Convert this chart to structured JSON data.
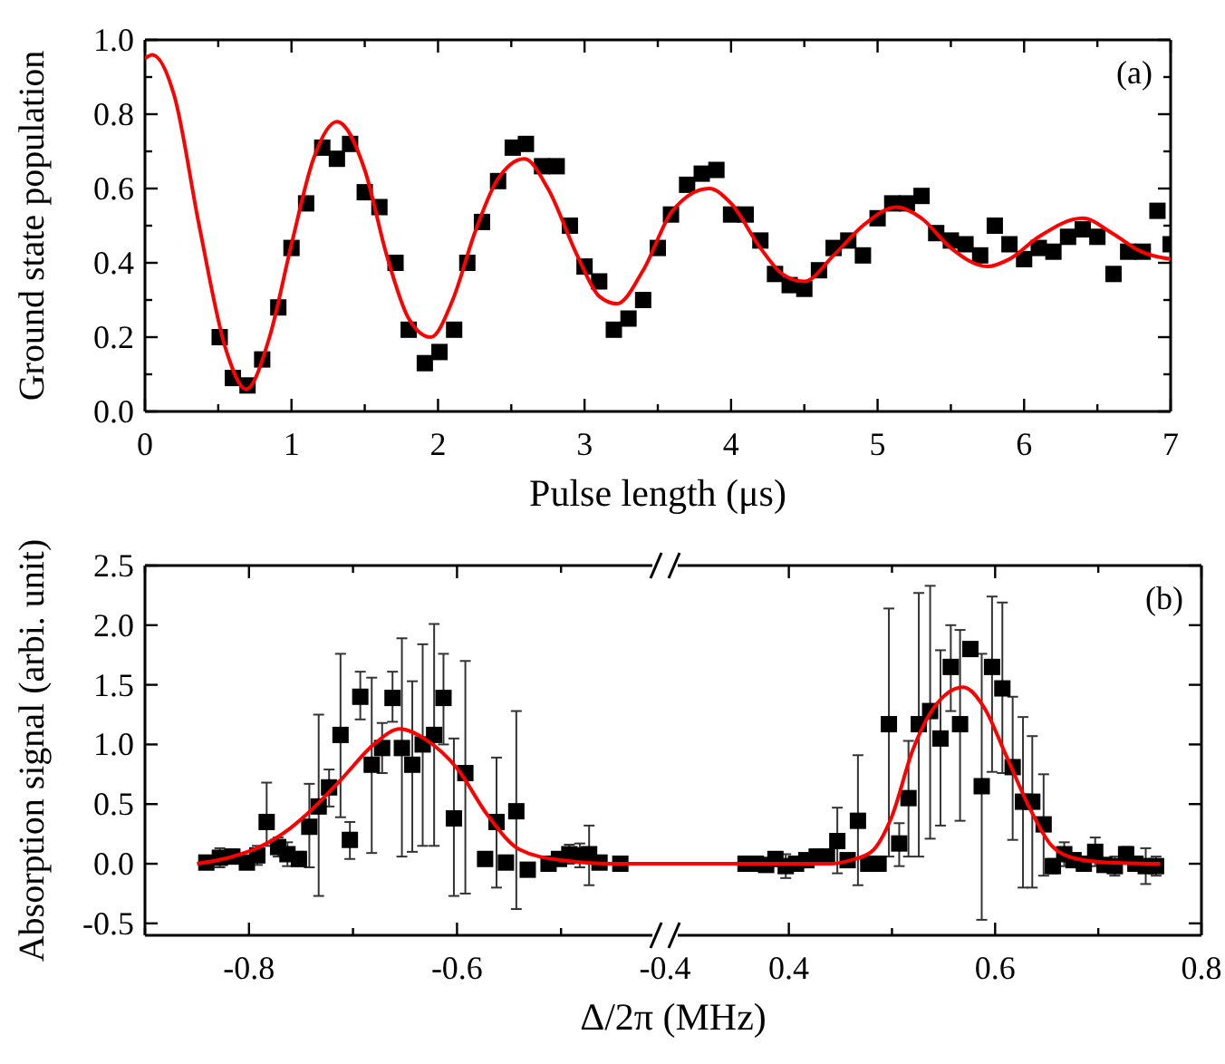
{
  "chart_data": [
    {
      "type": "scatter",
      "xlabel": "Pulse length (μs)",
      "ylabel": "Ground state population",
      "annotations": [
        "(a)"
      ],
      "xlim": [
        0,
        7
      ],
      "ylim": [
        0,
        1.0
      ],
      "xticks": [
        0,
        {
          "value": 0.5,
          "label": null
        },
        1,
        {
          "value": 1.5,
          "label": null
        },
        2,
        {
          "value": 2.5,
          "label": null
        },
        3,
        {
          "value": 3.5,
          "label": null
        },
        4,
        {
          "value": 4.5,
          "label": null
        },
        5,
        {
          "value": 5.5,
          "label": null
        },
        6,
        {
          "value": 6.5,
          "label": null
        },
        7
      ],
      "yticks": [
        {
          "value": 0,
          "label": "0.0"
        },
        {
          "value": 0.1,
          "label": null
        },
        0.2,
        {
          "value": 0.3,
          "label": null
        },
        0.4,
        {
          "value": 0.5,
          "label": null
        },
        0.6,
        {
          "value": 0.7,
          "label": null
        },
        0.8,
        {
          "value": 0.9,
          "label": null
        },
        {
          "value": 1.0,
          "label": "1.0"
        }
      ],
      "series": [
        {
          "marker": "square",
          "color": "#000000",
          "x": [
            0.51,
            0.6,
            0.7,
            0.8,
            0.91,
            1.0,
            1.1,
            1.21,
            1.31,
            1.4,
            1.5,
            1.6,
            1.71,
            1.8,
            1.91,
            2.01,
            2.11,
            2.2,
            2.3,
            2.41,
            2.51,
            2.6,
            2.71,
            2.81,
            2.9,
            3.0,
            3.1,
            3.2,
            3.3,
            3.4,
            3.5,
            3.59,
            3.7,
            3.8,
            3.9,
            4.0,
            4.1,
            4.2,
            4.3,
            4.4,
            4.5,
            4.6,
            4.7,
            4.8,
            4.9,
            5.0,
            5.1,
            5.2,
            5.3,
            5.4,
            5.5,
            5.6,
            5.7,
            5.8,
            5.9,
            6.0,
            6.1,
            6.2,
            6.3,
            6.4,
            6.5,
            6.61,
            6.71,
            6.81,
            6.91,
            7.0
          ],
          "values": [
            0.2,
            0.09,
            0.07,
            0.14,
            0.28,
            0.44,
            0.56,
            0.71,
            0.68,
            0.72,
            0.59,
            0.55,
            0.4,
            0.22,
            0.13,
            0.16,
            0.22,
            0.4,
            0.51,
            0.62,
            0.71,
            0.72,
            0.66,
            0.66,
            0.5,
            0.39,
            0.35,
            0.22,
            0.25,
            0.3,
            0.44,
            0.53,
            0.61,
            0.64,
            0.65,
            0.53,
            0.53,
            0.46,
            0.37,
            0.34,
            0.33,
            0.38,
            0.44,
            0.46,
            0.42,
            0.52,
            0.56,
            0.56,
            0.58,
            0.48,
            0.46,
            0.45,
            0.42,
            0.5,
            0.45,
            0.41,
            0.44,
            0.43,
            0.47,
            0.49,
            0.47,
            0.37,
            0.43,
            0.43,
            0.54,
            0.45
          ]
        },
        {
          "type": "line",
          "color": "#ff0000",
          "x": [
            0,
            0.05,
            0.2,
            0.37,
            0.55,
            0.69,
            0.85,
            1.0,
            1.15,
            1.31,
            1.5,
            1.65,
            1.8,
            1.95,
            2.1,
            2.25,
            2.4,
            2.59,
            2.75,
            2.95,
            3.1,
            3.22,
            3.4,
            3.6,
            3.85,
            4.0,
            4.2,
            4.35,
            4.5,
            4.7,
            4.9,
            5.13,
            5.3,
            5.5,
            5.75,
            5.9,
            6.1,
            6.4,
            6.6,
            6.8,
            7.0
          ],
          "values": [
            0.95,
            0.96,
            0.85,
            0.5,
            0.17,
            0.06,
            0.2,
            0.45,
            0.68,
            0.78,
            0.65,
            0.42,
            0.25,
            0.2,
            0.3,
            0.48,
            0.62,
            0.68,
            0.6,
            0.42,
            0.31,
            0.29,
            0.38,
            0.54,
            0.6,
            0.56,
            0.44,
            0.37,
            0.35,
            0.42,
            0.5,
            0.55,
            0.52,
            0.44,
            0.39,
            0.41,
            0.47,
            0.52,
            0.48,
            0.43,
            0.41
          ]
        }
      ]
    },
    {
      "type": "scatter",
      "xlabel": "Δ/2π (MHz)",
      "ylabel": "Absorption signal (arbi. unit)",
      "xlim": [
        -0.9,
        -0.4
      ],
      "ylim": [
        -0.6,
        2.5
      ],
      "xticks": [
        {
          "value": -0.9,
          "label": null
        },
        -0.8,
        {
          "value": -0.7,
          "label": null
        },
        -0.6,
        {
          "value": -0.5,
          "label": null
        },
        -0.4
      ],
      "yticks": [
        {
          "value": -0.5,
          "label": "-0.5"
        },
        {
          "value": 0,
          "label": "0.0"
        },
        0.5,
        {
          "value": 1.0,
          "label": "1.0"
        },
        1.5,
        {
          "value": 2.0,
          "label": "2.0"
        },
        2.5
      ],
      "series": [
        {
          "marker": "square",
          "color": "#000000",
          "x": [
            -0.841,
            -0.828,
            -0.816,
            -0.802,
            -0.792,
            -0.783,
            -0.772,
            -0.763,
            -0.752,
            -0.742,
            -0.733,
            -0.723,
            -0.712,
            -0.703,
            -0.693,
            -0.682,
            -0.672,
            -0.662,
            -0.653,
            -0.643,
            -0.633,
            -0.622,
            -0.613,
            -0.603,
            -0.592,
            -0.573,
            -0.562,
            -0.553,
            -0.543,
            -0.532,
            -0.512,
            -0.502,
            -0.492,
            -0.482,
            -0.473,
            -0.463,
            -0.443
          ],
          "values": [
            0.01,
            0.05,
            0.06,
            0.01,
            0.07,
            0.35,
            0.14,
            0.08,
            0.04,
            0.31,
            0.48,
            0.64,
            1.08,
            0.2,
            1.4,
            0.83,
            0.97,
            1.39,
            0.97,
            0.83,
            1.0,
            1.08,
            1.39,
            0.38,
            0.76,
            0.04,
            0.35,
            0.01,
            0.44,
            -0.05,
            0,
            0.04,
            0.08,
            0.07,
            0.08,
            0.01,
            0
          ],
          "errors": [
            0.05,
            0.08,
            0.06,
            0.05,
            0.08,
            [
              0.15,
              0.68
            ],
            0.08,
            0.1,
            0.06,
            [
              -0.03,
              0.67
            ],
            [
              -0.27,
              1.25
            ],
            [
              0.48,
              0.79
            ],
            [
              0.39,
              1.76
            ],
            [
              0.04,
              0.35
            ],
            [
              1.21,
              1.61
            ],
            [
              0.09,
              1.56
            ],
            [
              0.76,
              1.18
            ],
            [
              1.19,
              1.61
            ],
            [
              0.06,
              1.89
            ],
            [
              0.1,
              1.53
            ],
            [
              0.15,
              1.84
            ],
            [
              0.15,
              2.01
            ],
            [
              1.0,
              1.76
            ],
            [
              -0.27,
              1.05
            ],
            [
              -0.25,
              1.7
            ],
            0.05,
            [
              -0.2,
              0.89
            ],
            0.05,
            [
              -0.38,
              1.28
            ],
            0.05,
            0.05,
            0.05,
            0.08,
            0.1,
            [
              -0.18,
              0.32
            ],
            0.05,
            0.04
          ]
        },
        {
          "type": "line",
          "color": "#ff0000",
          "x": [
            -0.85,
            -0.82,
            -0.79,
            -0.76,
            -0.74,
            -0.71,
            -0.68,
            -0.655,
            -0.63,
            -0.6,
            -0.57,
            -0.54,
            -0.5,
            -0.45,
            -0.4
          ],
          "values": [
            0,
            0.05,
            0.14,
            0.3,
            0.45,
            0.72,
            1.0,
            1.13,
            1.04,
            0.8,
            0.4,
            0.12,
            0.03,
            0,
            0
          ]
        }
      ]
    },
    {
      "type": "scatter",
      "annotations": [
        "(b)"
      ],
      "tick_labels": "x",
      "xlim": [
        0.28,
        0.8
      ],
      "ylim": [
        -0.6,
        2.5
      ],
      "xticks": [
        0.4,
        {
          "value": 0.5,
          "label": null
        },
        0.6,
        {
          "value": 0.7,
          "label": null
        },
        0.8
      ],
      "yticks": [
        -0.5,
        0,
        0.5,
        1.0,
        1.5,
        2.0,
        2.5
      ],
      "series": [
        {
          "marker": "square",
          "color": "#000000",
          "x": [
            0.358,
            0.368,
            0.378,
            0.387,
            0.397,
            0.407,
            0.417,
            0.427,
            0.437,
            0.447,
            0.457,
            0.467,
            0.477,
            0.487,
            0.497,
            0.507,
            0.516,
            0.526,
            0.537,
            0.547,
            0.557,
            0.566,
            0.576,
            0.587,
            0.597,
            0.607,
            0.617,
            0.627,
            0.636,
            0.647,
            0.656,
            0.667,
            0.676,
            0.686,
            0.697,
            0.706,
            0.716,
            0.727,
            0.736,
            0.746,
            0.756
          ],
          "values": [
            0,
            0,
            -0.01,
            0.04,
            -0.02,
            0,
            0.03,
            0.06,
            0.06,
            0.19,
            0.03,
            0.36,
            0,
            0,
            1.17,
            0.17,
            0.55,
            1.17,
            1.28,
            1.05,
            1.65,
            1.17,
            1.8,
            0.65,
            1.65,
            1.47,
            0.81,
            0.52,
            0.52,
            0.33,
            -0.02,
            0.08,
            0.03,
            0,
            0.1,
            -0.01,
            -0.02,
            0.08,
            0,
            -0.02,
            -0.02
          ],
          "errors": [
            0.04,
            0.04,
            0.05,
            0.05,
            0.1,
            0.05,
            0.05,
            0.06,
            0.06,
            [
              -0.08,
              0.47
            ],
            0.05,
            [
              -0.18,
              0.91
            ],
            0.04,
            0.04,
            [
              0.06,
              2.14
            ],
            [
              -0.02,
              0.34
            ],
            [
              0.06,
              1.03
            ],
            [
              0.06,
              2.27
            ],
            [
              0.21,
              2.33
            ],
            [
              0.32,
              1.79
            ],
            [
              1.28,
              2.0
            ],
            [
              0.36,
              1.96
            ],
            null,
            [
              -0.47,
              1.76
            ],
            [
              0.77,
              2.24
            ],
            [
              0.76,
              2.19
            ],
            [
              0.2,
              1.4
            ],
            [
              -0.2,
              1.23
            ],
            [
              -0.2,
              1.07
            ],
            [
              -0.1,
              0.75
            ],
            0.06,
            0.1,
            0.05,
            0.05,
            0.12,
            0.05,
            0.08,
            0.06,
            0.05,
            0.15,
            0.08
          ]
        },
        {
          "type": "line",
          "color": "#ff0000",
          "x": [
            0.28,
            0.44,
            0.46,
            0.48,
            0.5,
            0.52,
            0.54,
            0.569,
            0.59,
            0.61,
            0.635,
            0.655,
            0.68,
            0.71,
            0.76
          ],
          "values": [
            0,
            0,
            0.03,
            0.1,
            0.4,
            0.95,
            1.3,
            1.48,
            1.3,
            0.92,
            0.44,
            0.15,
            0.04,
            0.01,
            0
          ]
        }
      ]
    }
  ]
}
